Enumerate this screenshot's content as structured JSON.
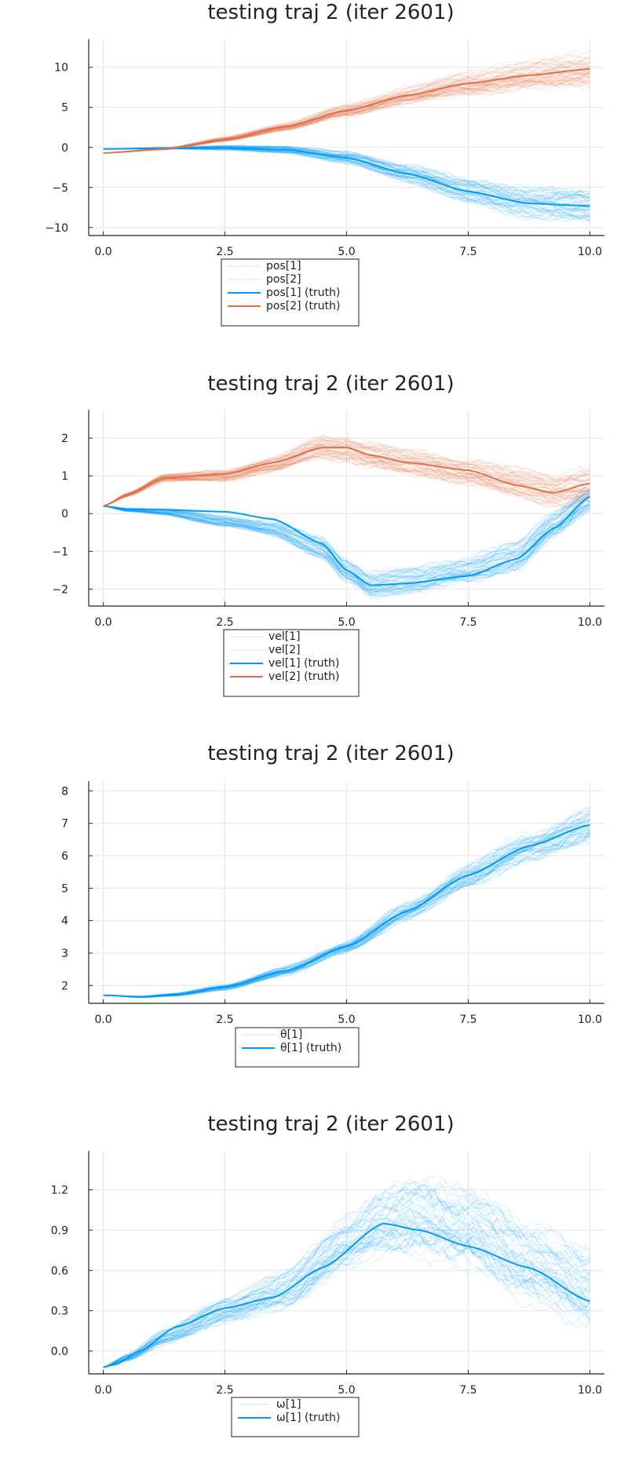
{
  "chart_data": [
    {
      "type": "line",
      "title": "testing traj 2 (iter 2601)",
      "xlim": [
        -0.3,
        10.3
      ],
      "ylim": [
        -11,
        13.5
      ],
      "xticks": [
        0.0,
        2.5,
        5.0,
        7.5,
        10.0
      ],
      "xtick_labels": [
        "0.0",
        "2.5",
        "5.0",
        "7.5",
        "10.0"
      ],
      "yticks": [
        -10,
        -5,
        0,
        5,
        10
      ],
      "ytick_labels": [
        "−10",
        "−5",
        "0",
        "5",
        "10"
      ],
      "grid": true,
      "legend_position": "bottom-center",
      "legend": [
        "pos[1]",
        "pos[2]",
        "pos[1] (truth)",
        "pos[2] (truth)"
      ],
      "series": [
        {
          "name": "pos[1]",
          "kind": "samples",
          "color": "#009AFA",
          "x": [
            0,
            1.25,
            2.5,
            3.75,
            5,
            6.25,
            7.5,
            8.75,
            10
          ],
          "values": [
            -0.2,
            -0.1,
            -0.05,
            -0.3,
            -1.3,
            -3.3,
            -5.5,
            -7.0,
            -7.3
          ],
          "spread": [
            0,
            0.1,
            0.3,
            0.5,
            0.8,
            1.2,
            1.6,
            2.0,
            2.2
          ]
        },
        {
          "name": "pos[2]",
          "kind": "samples",
          "color": "#E26F46",
          "x": [
            0,
            1.25,
            2.5,
            3.75,
            5,
            6.25,
            7.5,
            8.75,
            10
          ],
          "values": [
            -0.7,
            -0.2,
            1.0,
            2.6,
            4.6,
            6.5,
            8.0,
            9.0,
            9.8
          ],
          "spread": [
            0,
            0.1,
            0.3,
            0.5,
            0.8,
            1.1,
            1.5,
            1.9,
            2.2
          ]
        },
        {
          "name": "pos[1] (truth)",
          "kind": "truth",
          "color": "#009AFA",
          "x": [
            0,
            1.25,
            2.5,
            3.75,
            5,
            6.25,
            7.5,
            8.75,
            10
          ],
          "values": [
            -0.2,
            -0.1,
            -0.05,
            -0.3,
            -1.3,
            -3.3,
            -5.5,
            -7.0,
            -7.3
          ]
        },
        {
          "name": "pos[2] (truth)",
          "kind": "truth",
          "color": "#E26F46",
          "x": [
            0,
            1.25,
            2.5,
            3.75,
            5,
            6.25,
            7.5,
            8.75,
            10
          ],
          "values": [
            -0.7,
            -0.2,
            1.0,
            2.6,
            4.6,
            6.5,
            8.0,
            9.0,
            9.8
          ]
        }
      ]
    },
    {
      "type": "line",
      "title": "testing traj 2 (iter 2601)",
      "xlim": [
        -0.3,
        10.3
      ],
      "ylim": [
        -2.45,
        2.75
      ],
      "xticks": [
        0.0,
        2.5,
        5.0,
        7.5,
        10.0
      ],
      "xtick_labels": [
        "0.0",
        "2.5",
        "5.0",
        "7.5",
        "10.0"
      ],
      "yticks": [
        -2,
        -1,
        0,
        1,
        2
      ],
      "ytick_labels": [
        "−2",
        "−1",
        "0",
        "1",
        "2"
      ],
      "grid": true,
      "legend_position": "bottom-center",
      "legend": [
        "vel[1]",
        "vel[2]",
        "vel[1] (truth)",
        "vel[2] (truth)"
      ],
      "series": [
        {
          "name": "vel[1]",
          "kind": "samples",
          "color": "#009AFA",
          "x": [
            0,
            0.5,
            1.25,
            2.5,
            3.5,
            4.5,
            5.0,
            5.5,
            6.25,
            7.5,
            8.5,
            9.25,
            10
          ],
          "values": [
            0.2,
            0.1,
            0.05,
            -0.2,
            -0.4,
            -0.9,
            -1.5,
            -1.9,
            -1.75,
            -1.5,
            -1.1,
            -0.3,
            0.4
          ],
          "spread": [
            0,
            0.05,
            0.1,
            0.15,
            0.2,
            0.3,
            0.35,
            0.35,
            0.35,
            0.35,
            0.4,
            0.4,
            0.35
          ]
        },
        {
          "name": "vel[2]",
          "kind": "samples",
          "color": "#E26F46",
          "x": [
            0,
            0.5,
            1.25,
            2.5,
            3.5,
            4.5,
            5.0,
            5.5,
            6.25,
            7.5,
            8.5,
            9.25,
            10
          ],
          "values": [
            0.2,
            0.5,
            0.95,
            1.0,
            1.3,
            1.75,
            1.7,
            1.55,
            1.35,
            1.1,
            0.8,
            0.6,
            0.75
          ],
          "spread": [
            0,
            0.05,
            0.1,
            0.15,
            0.2,
            0.3,
            0.35,
            0.35,
            0.35,
            0.35,
            0.4,
            0.45,
            0.5
          ]
        },
        {
          "name": "vel[1] (truth)",
          "kind": "truth",
          "color": "#009AFA",
          "x": [
            0,
            0.5,
            1.25,
            2.5,
            3.5,
            4.5,
            5.0,
            5.5,
            6.25,
            7.5,
            8.5,
            9.25,
            10
          ],
          "values": [
            0.2,
            0.12,
            0.1,
            0.05,
            -0.15,
            -0.8,
            -1.5,
            -1.9,
            -1.85,
            -1.65,
            -1.2,
            -0.4,
            0.45
          ]
        },
        {
          "name": "vel[2] (truth)",
          "kind": "truth",
          "color": "#E26F46",
          "x": [
            0,
            0.5,
            1.25,
            2.5,
            3.5,
            4.5,
            5.0,
            5.5,
            6.25,
            7.5,
            8.5,
            9.25,
            10
          ],
          "values": [
            0.2,
            0.5,
            0.95,
            1.05,
            1.35,
            1.75,
            1.75,
            1.55,
            1.35,
            1.15,
            0.75,
            0.55,
            0.8
          ]
        }
      ]
    },
    {
      "type": "line",
      "title": "testing traj 2 (iter 2601)",
      "xlim": [
        -0.3,
        10.3
      ],
      "ylim": [
        1.45,
        8.3
      ],
      "xticks": [
        0.0,
        2.5,
        5.0,
        7.5,
        10.0
      ],
      "xtick_labels": [
        "0.0",
        "2.5",
        "5.0",
        "7.5",
        "10.0"
      ],
      "yticks": [
        2,
        3,
        4,
        5,
        6,
        7,
        8
      ],
      "ytick_labels": [
        "2",
        "3",
        "4",
        "5",
        "6",
        "7",
        "8"
      ],
      "grid": true,
      "legend_position": "bottom-center",
      "legend": [
        "θ[1]",
        "θ[1] (truth)"
      ],
      "series": [
        {
          "name": "θ[1]",
          "kind": "samples",
          "color": "#009AFA",
          "x": [
            0,
            0.75,
            1.5,
            2.5,
            3.75,
            5,
            6.25,
            7.5,
            8.75,
            10
          ],
          "values": [
            1.7,
            1.65,
            1.72,
            1.95,
            2.45,
            3.2,
            4.3,
            5.4,
            6.3,
            6.95
          ],
          "spread": [
            0,
            0.03,
            0.05,
            0.1,
            0.15,
            0.2,
            0.3,
            0.4,
            0.5,
            0.6
          ]
        },
        {
          "name": "θ[1] (truth)",
          "kind": "truth",
          "color": "#009AFA",
          "x": [
            0,
            0.75,
            1.5,
            2.5,
            3.75,
            5,
            6.25,
            7.5,
            8.75,
            10
          ],
          "values": [
            1.7,
            1.65,
            1.72,
            1.95,
            2.45,
            3.2,
            4.3,
            5.4,
            6.3,
            6.95
          ]
        }
      ]
    },
    {
      "type": "line",
      "title": "testing traj 2 (iter 2601)",
      "xlim": [
        -0.3,
        10.3
      ],
      "ylim": [
        -0.17,
        1.49
      ],
      "xticks": [
        0.0,
        2.5,
        5.0,
        7.5,
        10.0
      ],
      "xtick_labels": [
        "0.0",
        "2.5",
        "5.0",
        "7.5",
        "10.0"
      ],
      "yticks": [
        0.0,
        0.3,
        0.6,
        0.9,
        1.2
      ],
      "ytick_labels": [
        "0.0",
        "0.3",
        "0.6",
        "0.9",
        "1.2"
      ],
      "grid": true,
      "legend_position": "bottom-center",
      "legend": [
        "ω[1]",
        "ω[1] (truth)"
      ],
      "series": [
        {
          "name": "ω[1]",
          "kind": "samples",
          "color": "#009AFA",
          "x": [
            0,
            0.5,
            1.25,
            2.5,
            3.75,
            5,
            5.75,
            6.5,
            7.5,
            8.75,
            10
          ],
          "values": [
            -0.12,
            -0.05,
            0.1,
            0.3,
            0.45,
            0.8,
            0.95,
            1.0,
            0.9,
            0.65,
            0.45
          ],
          "spread": [
            0,
            0.03,
            0.06,
            0.1,
            0.15,
            0.2,
            0.25,
            0.3,
            0.3,
            0.3,
            0.3
          ]
        },
        {
          "name": "ω[1] (truth)",
          "kind": "truth",
          "color": "#009AFA",
          "x": [
            0,
            0.25,
            0.75,
            1.5,
            2.5,
            3.5,
            4.5,
            5.75,
            6.5,
            7.5,
            8.75,
            10
          ],
          "values": [
            -0.12,
            -0.1,
            0.0,
            0.18,
            0.32,
            0.4,
            0.62,
            0.95,
            0.9,
            0.78,
            0.62,
            0.37
          ]
        }
      ]
    }
  ]
}
